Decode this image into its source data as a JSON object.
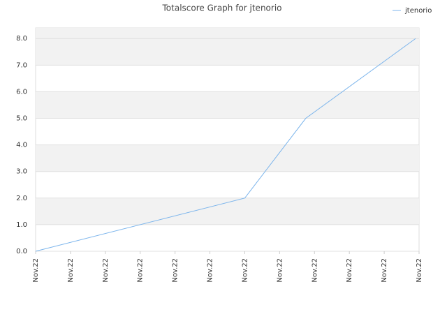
{
  "chart_data": {
    "type": "line",
    "title": "Totalscore Graph for jtenorio",
    "x": [
      0,
      6,
      7.75,
      10.9
    ],
    "series": [
      {
        "name": "jtenorio",
        "color": "#7cb5ec",
        "values": [
          0,
          2,
          5,
          8
        ]
      }
    ],
    "xlim": [
      0,
      11
    ],
    "xticks": [
      {
        "value": 0,
        "label": "Nov.22"
      },
      {
        "value": 1,
        "label": "Nov.22"
      },
      {
        "value": 2,
        "label": "Nov.22"
      },
      {
        "value": 3,
        "label": "Nov.22"
      },
      {
        "value": 4,
        "label": "Nov.22"
      },
      {
        "value": 5,
        "label": "Nov.22"
      },
      {
        "value": 6,
        "label": "Nov.22"
      },
      {
        "value": 7,
        "label": "Nov.22"
      },
      {
        "value": 8,
        "label": "Nov.22"
      },
      {
        "value": 9,
        "label": "Nov.22"
      },
      {
        "value": 10,
        "label": "Nov.22"
      },
      {
        "value": 11,
        "label": "Nov.22"
      }
    ],
    "ylim": [
      0,
      8.4
    ],
    "yticks": [
      {
        "value": 0,
        "label": "0.0"
      },
      {
        "value": 1,
        "label": "1.0"
      },
      {
        "value": 2,
        "label": "2.0"
      },
      {
        "value": 3,
        "label": "3.0"
      },
      {
        "value": 4,
        "label": "4.0"
      },
      {
        "value": 5,
        "label": "5.0"
      },
      {
        "value": 6,
        "label": "6.0"
      },
      {
        "value": 7,
        "label": "7.0"
      },
      {
        "value": 8,
        "label": "8.0"
      }
    ],
    "grid": true,
    "legend": "top-right"
  }
}
